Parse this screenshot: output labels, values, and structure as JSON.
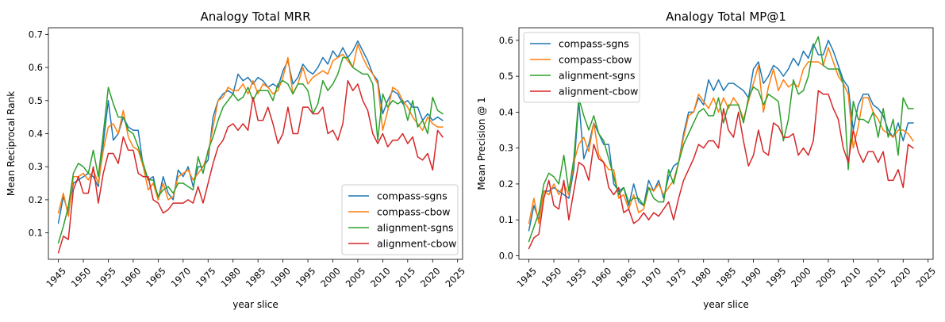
{
  "chart_data": [
    {
      "type": "line",
      "title": "Analogy Total MRR",
      "xlabel": "year slice",
      "ylabel": "Mean Reciprocal Rank",
      "xlim": [
        1943,
        2026
      ],
      "ylim": [
        0.02,
        0.72
      ],
      "xticks": [
        1945,
        1950,
        1955,
        1960,
        1965,
        1970,
        1975,
        1980,
        1985,
        1990,
        1995,
        2000,
        2005,
        2010,
        2015,
        2020,
        2025
      ],
      "yticks": [
        0.1,
        0.2,
        0.3,
        0.4,
        0.5,
        0.6,
        0.7
      ],
      "legend": "lower-right",
      "x": [
        1945,
        1946,
        1947,
        1948,
        1949,
        1950,
        1951,
        1952,
        1953,
        1954,
        1955,
        1956,
        1957,
        1958,
        1959,
        1960,
        1961,
        1962,
        1963,
        1964,
        1965,
        1966,
        1967,
        1968,
        1969,
        1970,
        1971,
        1972,
        1973,
        1974,
        1975,
        1976,
        1977,
        1978,
        1979,
        1980,
        1981,
        1982,
        1983,
        1984,
        1985,
        1986,
        1987,
        1988,
        1989,
        1990,
        1991,
        1992,
        1993,
        1994,
        1995,
        1996,
        1997,
        1998,
        1999,
        2000,
        2001,
        2002,
        2003,
        2004,
        2005,
        2006,
        2007,
        2008,
        2009,
        2010,
        2011,
        2012,
        2013,
        2014,
        2015,
        2016,
        2017,
        2018,
        2019,
        2020,
        2021,
        2022
      ],
      "series": [
        {
          "name": "compass-sgns",
          "color": "#1f77b4",
          "values": [
            0.13,
            0.21,
            0.16,
            0.25,
            0.26,
            0.27,
            0.28,
            0.27,
            0.24,
            0.37,
            0.5,
            0.38,
            0.4,
            0.45,
            0.42,
            0.41,
            0.41,
            0.3,
            0.26,
            0.27,
            0.2,
            0.27,
            0.22,
            0.2,
            0.29,
            0.27,
            0.3,
            0.24,
            0.3,
            0.3,
            0.32,
            0.45,
            0.5,
            0.52,
            0.53,
            0.52,
            0.58,
            0.56,
            0.57,
            0.55,
            0.57,
            0.56,
            0.54,
            0.55,
            0.54,
            0.59,
            0.62,
            0.55,
            0.57,
            0.61,
            0.59,
            0.58,
            0.6,
            0.63,
            0.61,
            0.65,
            0.63,
            0.66,
            0.63,
            0.65,
            0.68,
            0.65,
            0.62,
            0.58,
            0.56,
            0.46,
            0.5,
            0.53,
            0.52,
            0.49,
            0.5,
            0.48,
            0.48,
            0.44,
            0.46,
            0.44,
            0.45,
            0.44
          ]
        },
        {
          "name": "compass-cbow",
          "color": "#ff7f0e",
          "values": [
            0.16,
            0.22,
            0.15,
            0.27,
            0.27,
            0.28,
            0.26,
            0.29,
            0.25,
            0.35,
            0.42,
            0.43,
            0.4,
            0.47,
            0.39,
            0.36,
            0.35,
            0.3,
            0.23,
            0.25,
            0.2,
            0.25,
            0.2,
            0.21,
            0.27,
            0.28,
            0.29,
            0.26,
            0.28,
            0.3,
            0.34,
            0.42,
            0.5,
            0.51,
            0.54,
            0.53,
            0.53,
            0.55,
            0.52,
            0.56,
            0.52,
            0.55,
            0.54,
            0.52,
            0.53,
            0.57,
            0.63,
            0.52,
            0.55,
            0.6,
            0.55,
            0.57,
            0.58,
            0.59,
            0.58,
            0.62,
            0.63,
            0.64,
            0.62,
            0.6,
            0.67,
            0.63,
            0.6,
            0.58,
            0.55,
            0.41,
            0.47,
            0.54,
            0.53,
            0.5,
            0.48,
            0.45,
            0.43,
            0.41,
            0.45,
            0.43,
            0.42,
            0.42
          ]
        },
        {
          "name": "alignment-sgns",
          "color": "#2ca02c",
          "values": [
            0.07,
            0.12,
            0.18,
            0.28,
            0.31,
            0.3,
            0.28,
            0.35,
            0.27,
            0.4,
            0.54,
            0.49,
            0.45,
            0.45,
            0.41,
            0.4,
            0.36,
            0.31,
            0.26,
            0.26,
            0.21,
            0.23,
            0.24,
            0.22,
            0.25,
            0.25,
            0.24,
            0.23,
            0.33,
            0.28,
            0.35,
            0.39,
            0.44,
            0.48,
            0.5,
            0.52,
            0.5,
            0.51,
            0.54,
            0.5,
            0.53,
            0.53,
            0.53,
            0.5,
            0.55,
            0.56,
            0.55,
            0.52,
            0.55,
            0.55,
            0.53,
            0.46,
            0.49,
            0.56,
            0.53,
            0.55,
            0.58,
            0.63,
            0.63,
            0.6,
            0.59,
            0.58,
            0.58,
            0.55,
            0.38,
            0.52,
            0.48,
            0.5,
            0.49,
            0.5,
            0.44,
            0.5,
            0.42,
            0.44,
            0.4,
            0.51,
            0.47,
            0.46
          ]
        },
        {
          "name": "alignment-cbow",
          "color": "#d62728",
          "values": [
            0.04,
            0.09,
            0.08,
            0.23,
            0.27,
            0.22,
            0.22,
            0.3,
            0.19,
            0.28,
            0.34,
            0.34,
            0.31,
            0.39,
            0.35,
            0.35,
            0.28,
            0.27,
            0.27,
            0.2,
            0.19,
            0.16,
            0.17,
            0.19,
            0.19,
            0.19,
            0.2,
            0.19,
            0.24,
            0.19,
            0.25,
            0.31,
            0.36,
            0.38,
            0.42,
            0.43,
            0.41,
            0.43,
            0.41,
            0.51,
            0.44,
            0.44,
            0.48,
            0.43,
            0.37,
            0.4,
            0.48,
            0.4,
            0.4,
            0.48,
            0.48,
            0.46,
            0.46,
            0.48,
            0.4,
            0.41,
            0.38,
            0.43,
            0.56,
            0.53,
            0.55,
            0.5,
            0.47,
            0.4,
            0.37,
            0.4,
            0.36,
            0.38,
            0.38,
            0.4,
            0.37,
            0.39,
            0.33,
            0.32,
            0.34,
            0.29,
            0.41,
            0.39
          ]
        }
      ]
    },
    {
      "type": "line",
      "title": "Analogy Total MP@1",
      "xlabel": "year slice",
      "ylabel": "Mean Precision @ 1",
      "xlim": [
        1943,
        2026
      ],
      "ylim": [
        -0.01,
        0.635
      ],
      "xticks": [
        1945,
        1950,
        1955,
        1960,
        1965,
        1970,
        1975,
        1980,
        1985,
        1990,
        1995,
        2000,
        2005,
        2010,
        2015,
        2020,
        2025
      ],
      "yticks": [
        0.0,
        0.1,
        0.2,
        0.3,
        0.4,
        0.5,
        0.6
      ],
      "legend": "upper-left",
      "x": [
        1945,
        1946,
        1947,
        1948,
        1949,
        1950,
        1951,
        1952,
        1953,
        1954,
        1955,
        1956,
        1957,
        1958,
        1959,
        1960,
        1961,
        1962,
        1963,
        1964,
        1965,
        1966,
        1967,
        1968,
        1969,
        1970,
        1971,
        1972,
        1973,
        1974,
        1975,
        1976,
        1977,
        1978,
        1979,
        1980,
        1981,
        1982,
        1983,
        1984,
        1985,
        1986,
        1987,
        1988,
        1989,
        1990,
        1991,
        1992,
        1993,
        1994,
        1995,
        1996,
        1997,
        1998,
        1999,
        2000,
        2001,
        2002,
        2003,
        2004,
        2005,
        2006,
        2007,
        2008,
        2009,
        2010,
        2011,
        2012,
        2013,
        2014,
        2015,
        2016,
        2017,
        2018,
        2019,
        2020,
        2021,
        2022
      ],
      "series": [
        {
          "name": "compass-sgns",
          "color": "#1f77b4",
          "values": [
            0.07,
            0.14,
            0.1,
            0.18,
            0.18,
            0.19,
            0.18,
            0.17,
            0.16,
            0.24,
            0.43,
            0.27,
            0.31,
            0.37,
            0.34,
            0.31,
            0.31,
            0.2,
            0.18,
            0.19,
            0.14,
            0.2,
            0.15,
            0.14,
            0.21,
            0.18,
            0.21,
            0.16,
            0.22,
            0.25,
            0.26,
            0.34,
            0.4,
            0.4,
            0.44,
            0.42,
            0.49,
            0.46,
            0.49,
            0.46,
            0.48,
            0.48,
            0.47,
            0.46,
            0.44,
            0.52,
            0.54,
            0.48,
            0.5,
            0.53,
            0.52,
            0.5,
            0.52,
            0.55,
            0.53,
            0.57,
            0.55,
            0.59,
            0.56,
            0.56,
            0.6,
            0.57,
            0.53,
            0.49,
            0.47,
            0.35,
            0.42,
            0.45,
            0.45,
            0.42,
            0.41,
            0.39,
            0.35,
            0.33,
            0.37,
            0.32,
            0.37,
            0.37
          ]
        },
        {
          "name": "compass-cbow",
          "color": "#ff7f0e",
          "values": [
            0.09,
            0.16,
            0.09,
            0.18,
            0.17,
            0.2,
            0.17,
            0.2,
            0.17,
            0.26,
            0.31,
            0.33,
            0.29,
            0.37,
            0.28,
            0.26,
            0.24,
            0.24,
            0.16,
            0.17,
            0.13,
            0.17,
            0.12,
            0.13,
            0.19,
            0.18,
            0.2,
            0.17,
            0.19,
            0.21,
            0.26,
            0.33,
            0.39,
            0.4,
            0.45,
            0.43,
            0.41,
            0.44,
            0.4,
            0.44,
            0.41,
            0.44,
            0.42,
            0.38,
            0.43,
            0.48,
            0.53,
            0.4,
            0.47,
            0.52,
            0.46,
            0.49,
            0.47,
            0.48,
            0.47,
            0.52,
            0.54,
            0.54,
            0.54,
            0.53,
            0.58,
            0.54,
            0.5,
            0.48,
            0.45,
            0.3,
            0.36,
            0.44,
            0.44,
            0.4,
            0.38,
            0.35,
            0.34,
            0.33,
            0.35,
            0.35,
            0.34,
            0.32
          ]
        },
        {
          "name": "alignment-sgns",
          "color": "#2ca02c",
          "values": [
            0.04,
            0.08,
            0.12,
            0.2,
            0.23,
            0.22,
            0.2,
            0.28,
            0.18,
            0.27,
            0.44,
            0.39,
            0.35,
            0.39,
            0.34,
            0.32,
            0.27,
            0.22,
            0.17,
            0.19,
            0.15,
            0.16,
            0.16,
            0.14,
            0.19,
            0.16,
            0.15,
            0.15,
            0.24,
            0.2,
            0.26,
            0.31,
            0.34,
            0.37,
            0.4,
            0.41,
            0.39,
            0.39,
            0.44,
            0.37,
            0.42,
            0.42,
            0.42,
            0.37,
            0.44,
            0.47,
            0.46,
            0.42,
            0.45,
            0.44,
            0.43,
            0.32,
            0.38,
            0.49,
            0.45,
            0.46,
            0.5,
            0.58,
            0.61,
            0.53,
            0.52,
            0.52,
            0.52,
            0.48,
            0.24,
            0.43,
            0.38,
            0.38,
            0.37,
            0.4,
            0.33,
            0.41,
            0.33,
            0.38,
            0.28,
            0.44,
            0.41,
            0.41
          ]
        },
        {
          "name": "alignment-cbow",
          "color": "#d62728",
          "values": [
            0.02,
            0.05,
            0.06,
            0.16,
            0.21,
            0.14,
            0.13,
            0.21,
            0.1,
            0.18,
            0.26,
            0.25,
            0.21,
            0.31,
            0.27,
            0.26,
            0.19,
            0.17,
            0.19,
            0.12,
            0.13,
            0.09,
            0.1,
            0.12,
            0.1,
            0.12,
            0.11,
            0.13,
            0.15,
            0.1,
            0.16,
            0.21,
            0.24,
            0.27,
            0.31,
            0.3,
            0.32,
            0.32,
            0.3,
            0.41,
            0.35,
            0.33,
            0.4,
            0.32,
            0.25,
            0.28,
            0.35,
            0.29,
            0.28,
            0.37,
            0.36,
            0.33,
            0.33,
            0.34,
            0.28,
            0.3,
            0.28,
            0.32,
            0.46,
            0.45,
            0.45,
            0.41,
            0.38,
            0.3,
            0.26,
            0.35,
            0.29,
            0.26,
            0.29,
            0.29,
            0.26,
            0.29,
            0.21,
            0.21,
            0.24,
            0.19,
            0.31,
            0.3
          ]
        }
      ]
    }
  ]
}
